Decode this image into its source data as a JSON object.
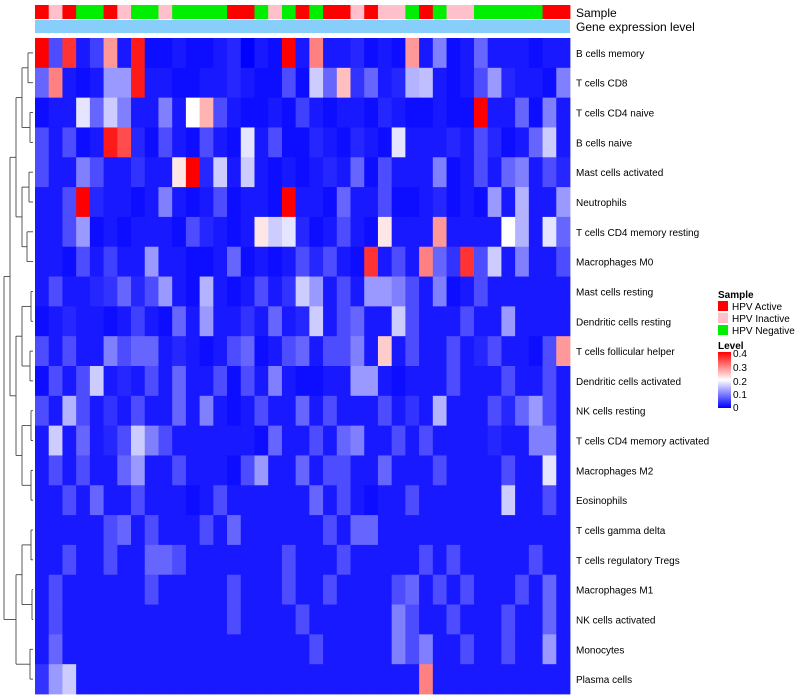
{
  "chart_data": {
    "type": "heatmap",
    "annotation_rows": [
      "Sample",
      "Gene expression level"
    ],
    "sample_groups": [
      "Active",
      "Inactive",
      "Active",
      "Negative",
      "Negative",
      "Active",
      "Inactive",
      "Negative",
      "Negative",
      "Inactive",
      "Negative",
      "Negative",
      "Negative",
      "Negative",
      "Active",
      "Active",
      "Negative",
      "Inactive",
      "Negative",
      "Active",
      "Negative",
      "Active",
      "Active",
      "Inactive",
      "Active",
      "Inactive",
      "Inactive",
      "Negative",
      "Active",
      "Negative",
      "Inactive",
      "Inactive",
      "Negative",
      "Negative",
      "Negative",
      "Negative",
      "Negative",
      "Active",
      "Active"
    ],
    "rows": [
      "B cells memory",
      "T cells CD8",
      "T cells CD4 naive",
      "B cells naive",
      "Mast cells activated",
      "Neutrophils",
      "T cells CD4 memory resting",
      "Macrophages M0",
      "Mast cells resting",
      "Dendritic cells resting",
      "T cells follicular helper",
      "Dendritic cells activated",
      "NK cells resting",
      "T cells CD4 memory activated",
      "Macrophages M2",
      "Eosinophils",
      "T cells gamma delta",
      "T cells regulatory  Tregs",
      "Macrophages M1",
      "NK cells activated",
      "Monocytes",
      "Plasma cells"
    ],
    "values": [
      [
        0.4,
        0.06,
        0.36,
        0.02,
        0.05,
        0.28,
        0.02,
        0.38,
        0.01,
        0.01,
        0.02,
        0.01,
        0.01,
        0.02,
        0.03,
        0.0,
        0.02,
        0.01,
        0.4,
        0.02,
        0.3,
        0.02,
        0.02,
        0.03,
        0.01,
        0.02,
        0.01,
        0.28,
        0.02,
        0.1,
        0.01,
        0.02,
        0.08,
        0.02,
        0.02,
        0.02,
        0.01,
        0.02,
        0.02
      ],
      [
        0.08,
        0.3,
        0.02,
        0.01,
        0.02,
        0.12,
        0.12,
        0.38,
        0.02,
        0.02,
        0.01,
        0.01,
        0.02,
        0.02,
        0.03,
        0.02,
        0.01,
        0.01,
        0.06,
        0.01,
        0.16,
        0.08,
        0.25,
        0.04,
        0.08,
        0.02,
        0.03,
        0.14,
        0.15,
        0.02,
        0.01,
        0.02,
        0.06,
        0.12,
        0.03,
        0.02,
        0.02,
        0.01,
        0.1
      ],
      [
        0.01,
        0.02,
        0.02,
        0.18,
        0.08,
        0.16,
        0.1,
        0.02,
        0.02,
        0.1,
        0.02,
        0.2,
        0.26,
        0.06,
        0.02,
        0.01,
        0.01,
        0.02,
        0.01,
        0.05,
        0.02,
        0.01,
        0.02,
        0.02,
        0.01,
        0.03,
        0.02,
        0.01,
        0.01,
        0.02,
        0.01,
        0.01,
        0.4,
        0.02,
        0.02,
        0.08,
        0.01,
        0.1,
        0.02
      ],
      [
        0.06,
        0.02,
        0.06,
        0.01,
        0.02,
        0.38,
        0.34,
        0.03,
        0.01,
        0.06,
        0.02,
        0.01,
        0.06,
        0.02,
        0.01,
        0.18,
        0.02,
        0.06,
        0.01,
        0.01,
        0.03,
        0.02,
        0.01,
        0.03,
        0.02,
        0.01,
        0.18,
        0.02,
        0.02,
        0.02,
        0.03,
        0.02,
        0.06,
        0.03,
        0.01,
        0.02,
        0.08,
        0.16,
        0.02
      ],
      [
        0.06,
        0.02,
        0.02,
        0.1,
        0.06,
        0.02,
        0.02,
        0.04,
        0.02,
        0.02,
        0.22,
        0.4,
        0.03,
        0.16,
        0.02,
        0.16,
        0.02,
        0.01,
        0.02,
        0.01,
        0.02,
        0.03,
        0.02,
        0.08,
        0.01,
        0.06,
        0.02,
        0.02,
        0.02,
        0.1,
        0.01,
        0.02,
        0.06,
        0.02,
        0.08,
        0.1,
        0.02,
        0.06,
        0.03
      ],
      [
        0.02,
        0.02,
        0.06,
        0.4,
        0.03,
        0.02,
        0.02,
        0.01,
        0.02,
        0.1,
        0.02,
        0.01,
        0.02,
        0.06,
        0.01,
        0.02,
        0.02,
        0.01,
        0.42,
        0.02,
        0.02,
        0.01,
        0.08,
        0.02,
        0.02,
        0.06,
        0.01,
        0.01,
        0.02,
        0.03,
        0.01,
        0.02,
        0.01,
        0.12,
        0.02,
        0.14,
        0.02,
        0.02,
        0.12
      ],
      [
        0.02,
        0.02,
        0.06,
        0.12,
        0.01,
        0.02,
        0.01,
        0.02,
        0.02,
        0.02,
        0.01,
        0.06,
        0.03,
        0.02,
        0.01,
        0.02,
        0.22,
        0.16,
        0.18,
        0.03,
        0.01,
        0.02,
        0.06,
        0.02,
        0.01,
        0.22,
        0.02,
        0.02,
        0.02,
        0.28,
        0.02,
        0.02,
        0.02,
        0.02,
        0.2,
        0.14,
        0.02,
        0.18,
        0.08
      ],
      [
        0.02,
        0.02,
        0.01,
        0.06,
        0.02,
        0.05,
        0.02,
        0.02,
        0.12,
        0.02,
        0.02,
        0.01,
        0.01,
        0.02,
        0.08,
        0.01,
        0.02,
        0.01,
        0.02,
        0.06,
        0.03,
        0.06,
        0.02,
        0.01,
        0.36,
        0.02,
        0.06,
        0.02,
        0.3,
        0.08,
        0.04,
        0.36,
        0.06,
        0.16,
        0.02,
        0.1,
        0.02,
        0.02,
        0.06
      ],
      [
        0.02,
        0.06,
        0.02,
        0.02,
        0.03,
        0.04,
        0.08,
        0.03,
        0.06,
        0.12,
        0.02,
        0.01,
        0.14,
        0.02,
        0.01,
        0.02,
        0.06,
        0.02,
        0.04,
        0.16,
        0.12,
        0.02,
        0.06,
        0.02,
        0.12,
        0.12,
        0.1,
        0.06,
        0.02,
        0.1,
        0.01,
        0.02,
        0.06,
        0.02,
        0.02,
        0.02,
        0.02,
        0.02,
        0.02
      ],
      [
        0.01,
        0.02,
        0.03,
        0.02,
        0.02,
        0.01,
        0.02,
        0.05,
        0.02,
        0.01,
        0.08,
        0.02,
        0.12,
        0.02,
        0.02,
        0.04,
        0.02,
        0.08,
        0.02,
        0.03,
        0.16,
        0.02,
        0.06,
        0.08,
        0.02,
        0.02,
        0.16,
        0.06,
        0.02,
        0.02,
        0.02,
        0.06,
        0.02,
        0.02,
        0.12,
        0.02,
        0.02,
        0.02,
        0.02
      ],
      [
        0.06,
        0.02,
        0.06,
        0.02,
        0.02,
        0.1,
        0.06,
        0.08,
        0.08,
        0.02,
        0.03,
        0.02,
        0.01,
        0.02,
        0.06,
        0.08,
        0.01,
        0.02,
        0.06,
        0.08,
        0.02,
        0.06,
        0.06,
        0.1,
        0.02,
        0.24,
        0.02,
        0.06,
        0.02,
        0.02,
        0.06,
        0.02,
        0.03,
        0.06,
        0.02,
        0.02,
        0.01,
        0.06,
        0.28
      ],
      [
        0.01,
        0.06,
        0.02,
        0.06,
        0.16,
        0.02,
        0.03,
        0.02,
        0.06,
        0.02,
        0.08,
        0.02,
        0.02,
        0.06,
        0.01,
        0.06,
        0.02,
        0.1,
        0.02,
        0.01,
        0.01,
        0.02,
        0.02,
        0.12,
        0.12,
        0.02,
        0.01,
        0.02,
        0.02,
        0.02,
        0.06,
        0.02,
        0.02,
        0.02,
        0.06,
        0.02,
        0.02,
        0.06,
        0.02
      ],
      [
        0.06,
        0.02,
        0.14,
        0.06,
        0.02,
        0.04,
        0.02,
        0.06,
        0.02,
        0.02,
        0.08,
        0.02,
        0.1,
        0.02,
        0.01,
        0.02,
        0.06,
        0.02,
        0.02,
        0.08,
        0.02,
        0.06,
        0.02,
        0.02,
        0.02,
        0.06,
        0.02,
        0.04,
        0.02,
        0.14,
        0.02,
        0.02,
        0.02,
        0.06,
        0.03,
        0.08,
        0.12,
        0.06,
        0.02
      ],
      [
        0.02,
        0.16,
        0.02,
        0.08,
        0.02,
        0.03,
        0.06,
        0.16,
        0.1,
        0.06,
        0.02,
        0.02,
        0.02,
        0.02,
        0.02,
        0.02,
        0.01,
        0.08,
        0.02,
        0.02,
        0.06,
        0.02,
        0.08,
        0.1,
        0.02,
        0.02,
        0.06,
        0.02,
        0.06,
        0.02,
        0.02,
        0.02,
        0.02,
        0.03,
        0.02,
        0.02,
        0.1,
        0.1,
        0.02
      ],
      [
        0.02,
        0.06,
        0.02,
        0.06,
        0.02,
        0.02,
        0.08,
        0.12,
        0.02,
        0.02,
        0.06,
        0.02,
        0.02,
        0.02,
        0.01,
        0.06,
        0.12,
        0.02,
        0.02,
        0.08,
        0.02,
        0.06,
        0.06,
        0.02,
        0.02,
        0.08,
        0.02,
        0.02,
        0.02,
        0.06,
        0.02,
        0.02,
        0.02,
        0.02,
        0.06,
        0.02,
        0.02,
        0.18,
        0.02
      ],
      [
        0.02,
        0.02,
        0.06,
        0.02,
        0.08,
        0.02,
        0.02,
        0.06,
        0.02,
        0.02,
        0.02,
        0.01,
        0.02,
        0.06,
        0.02,
        0.02,
        0.02,
        0.02,
        0.02,
        0.02,
        0.08,
        0.02,
        0.06,
        0.02,
        0.01,
        0.02,
        0.02,
        0.06,
        0.02,
        0.02,
        0.02,
        0.02,
        0.02,
        0.02,
        0.16,
        0.02,
        0.02,
        0.06,
        0.02
      ],
      [
        0.02,
        0.02,
        0.02,
        0.02,
        0.02,
        0.06,
        0.08,
        0.02,
        0.06,
        0.02,
        0.02,
        0.02,
        0.06,
        0.02,
        0.08,
        0.02,
        0.02,
        0.02,
        0.02,
        0.02,
        0.02,
        0.06,
        0.02,
        0.08,
        0.08,
        0.02,
        0.02,
        0.02,
        0.02,
        0.02,
        0.02,
        0.02,
        0.02,
        0.02,
        0.02,
        0.02,
        0.02,
        0.02,
        0.02
      ],
      [
        0.02,
        0.02,
        0.06,
        0.02,
        0.02,
        0.06,
        0.02,
        0.02,
        0.08,
        0.08,
        0.06,
        0.02,
        0.02,
        0.02,
        0.02,
        0.02,
        0.02,
        0.02,
        0.06,
        0.02,
        0.02,
        0.02,
        0.06,
        0.02,
        0.02,
        0.02,
        0.02,
        0.02,
        0.06,
        0.02,
        0.06,
        0.02,
        0.02,
        0.02,
        0.02,
        0.02,
        0.06,
        0.02,
        0.02
      ],
      [
        0.02,
        0.06,
        0.02,
        0.02,
        0.02,
        0.02,
        0.02,
        0.02,
        0.06,
        0.02,
        0.02,
        0.02,
        0.02,
        0.02,
        0.06,
        0.02,
        0.02,
        0.02,
        0.06,
        0.02,
        0.02,
        0.06,
        0.02,
        0.02,
        0.02,
        0.02,
        0.06,
        0.08,
        0.02,
        0.06,
        0.02,
        0.06,
        0.02,
        0.02,
        0.02,
        0.06,
        0.02,
        0.08,
        0.02
      ],
      [
        0.02,
        0.06,
        0.02,
        0.02,
        0.02,
        0.02,
        0.02,
        0.02,
        0.02,
        0.02,
        0.02,
        0.02,
        0.02,
        0.02,
        0.06,
        0.02,
        0.02,
        0.02,
        0.02,
        0.06,
        0.02,
        0.02,
        0.02,
        0.02,
        0.02,
        0.02,
        0.1,
        0.06,
        0.02,
        0.02,
        0.06,
        0.02,
        0.02,
        0.02,
        0.06,
        0.02,
        0.02,
        0.08,
        0.02
      ],
      [
        0.02,
        0.08,
        0.02,
        0.02,
        0.02,
        0.02,
        0.02,
        0.02,
        0.02,
        0.02,
        0.02,
        0.02,
        0.02,
        0.02,
        0.02,
        0.02,
        0.02,
        0.02,
        0.02,
        0.02,
        0.06,
        0.02,
        0.02,
        0.02,
        0.02,
        0.02,
        0.1,
        0.06,
        0.1,
        0.02,
        0.02,
        0.06,
        0.02,
        0.02,
        0.06,
        0.02,
        0.02,
        0.12,
        0.02
      ],
      [
        0.04,
        0.12,
        0.16,
        0.02,
        0.02,
        0.02,
        0.02,
        0.02,
        0.02,
        0.02,
        0.02,
        0.02,
        0.02,
        0.02,
        0.02,
        0.02,
        0.02,
        0.02,
        0.02,
        0.02,
        0.02,
        0.02,
        0.02,
        0.02,
        0.02,
        0.02,
        0.02,
        0.02,
        0.3,
        0.02,
        0.02,
        0.02,
        0.02,
        0.02,
        0.02,
        0.02,
        0.02,
        0.02,
        0.02
      ]
    ],
    "legend_sample": {
      "title": "Sample",
      "entries": [
        "HPV Active",
        "HPV Inactive",
        "HPV Negative"
      ]
    },
    "legend_level": {
      "title": "Level",
      "ticks": [
        "0.4",
        "0.3",
        "0.2",
        "0.1",
        "0"
      ],
      "range": [
        0,
        0.4
      ]
    }
  },
  "colors": {
    "active": "#ff0000",
    "inactive": "#ffc0cb",
    "negative": "#00ee00",
    "gene_bar": "#87cefa",
    "low": "#0000ff",
    "mid": "#ffffff",
    "high": "#ff0000"
  }
}
